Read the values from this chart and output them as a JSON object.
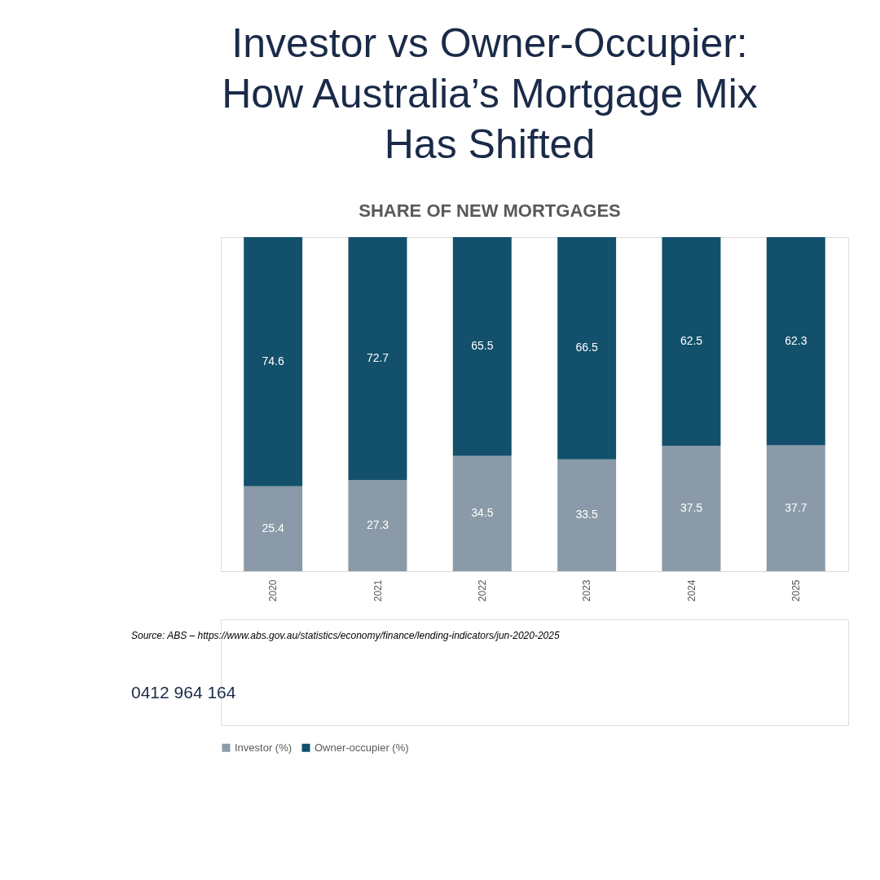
{
  "chart_data": {
    "type": "bar",
    "title": "Investor vs Owner-Occupier: How Australia’s Mortgage Mix Has Shifted",
    "subtitle": "SHARE OF NEW MORTGAGES",
    "categories": [
      "2020",
      "2021",
      "2022",
      "2023",
      "2024",
      "2025"
    ],
    "series": [
      {
        "name": "Investor (%)",
        "color": "#8a9aa8",
        "values": [
          25.4,
          27.3,
          34.5,
          33.5,
          37.5,
          37.7
        ]
      },
      {
        "name": "Owner-occupier (%)",
        "color": "#12506b",
        "values": [
          74.6,
          72.7,
          65.5,
          66.5,
          62.5,
          62.3
        ]
      }
    ],
    "stacked": true,
    "data_labels": true,
    "grid": "x",
    "legend": "bottom",
    "annotations": [
      "Source: ABS – https://www.abs.gov.au/statistics/economy/finance/lending-indicators/jun-2020-2025",
      "0412 964 164"
    ]
  }
}
